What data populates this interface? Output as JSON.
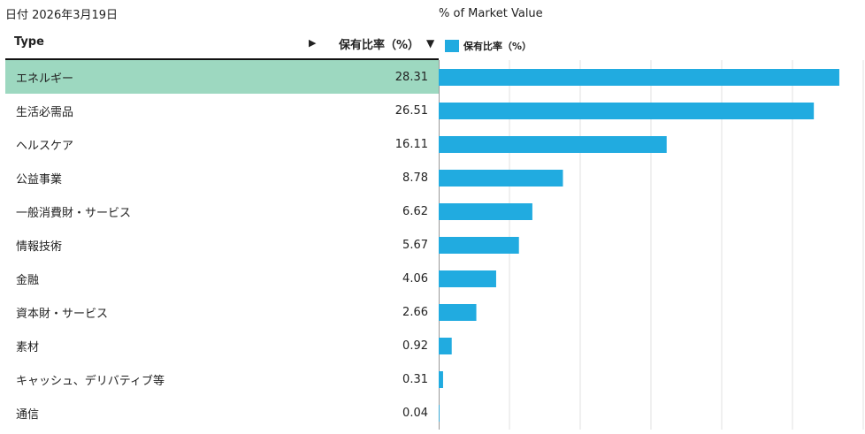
{
  "header": {
    "date": "日付 2026年3月19日",
    "type_label": "Type",
    "expand_arrow": "▶",
    "value_label": "保有比率（%）",
    "sort_arrow": "▼"
  },
  "chart_data": {
    "type": "bar",
    "orientation": "horizontal",
    "title": "% of Market Value",
    "legend": [
      "保有比率（%）"
    ],
    "color": "#21ABE0",
    "xlim": [
      0,
      30
    ],
    "grid": true,
    "grid_step": 5,
    "categories": [
      "エネルギー",
      "生活必需品",
      "ヘルスケア",
      "公益事業",
      "一般消費財・サービス",
      "情報技術",
      "金融",
      "資本財・サービス",
      "素材",
      "キャッシュ、デリバティブ等",
      "通信"
    ],
    "values": [
      28.31,
      26.51,
      16.11,
      8.78,
      6.62,
      5.67,
      4.06,
      2.66,
      0.92,
      0.31,
      0.04
    ],
    "value_labels": [
      "28.31",
      "26.51",
      "16.11",
      "8.78",
      "6.62",
      "5.67",
      "4.06",
      "2.66",
      "0.92",
      "0.31",
      "0.04"
    ]
  },
  "selected_row": 0
}
